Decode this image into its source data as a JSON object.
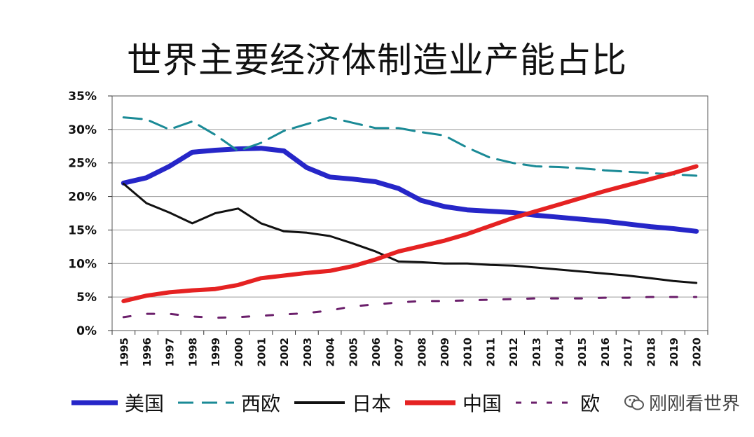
{
  "chart_data": {
    "type": "line",
    "title": "世界主要经济体制造业产能占比",
    "x": [
      1995,
      1996,
      1997,
      1998,
      1999,
      2000,
      2001,
      2002,
      2003,
      2004,
      2005,
      2006,
      2007,
      2008,
      2009,
      2010,
      2011,
      2012,
      2013,
      2014,
      2015,
      2016,
      2017,
      2018,
      2019,
      2020
    ],
    "yticks": [
      "0%",
      "5%",
      "10%",
      "15%",
      "20%",
      "25%",
      "30%",
      "35%"
    ],
    "ylim": [
      0,
      35
    ],
    "grid": true,
    "legend_position": "bottom",
    "series": [
      {
        "name": "美国",
        "color": "#2626c8",
        "dash": "solid",
        "width": 7,
        "values": [
          22.0,
          22.8,
          24.5,
          26.6,
          26.9,
          27.1,
          27.2,
          26.8,
          24.3,
          22.9,
          22.6,
          22.2,
          21.2,
          19.4,
          18.5,
          18.0,
          17.8,
          17.6,
          17.2,
          16.9,
          16.6,
          16.3,
          15.9,
          15.5,
          15.2,
          14.8
        ]
      },
      {
        "name": "西欧",
        "color": "#1a8a96",
        "dash": "dashed",
        "width": 3,
        "values": [
          31.8,
          31.5,
          30.0,
          31.2,
          29.2,
          26.8,
          28.0,
          29.8,
          30.8,
          31.8,
          31.0,
          30.2,
          30.2,
          29.6,
          29.1,
          27.3,
          25.8,
          25.0,
          24.5,
          24.4,
          24.2,
          23.9,
          23.7,
          23.5,
          23.3,
          23.1
        ]
      },
      {
        "name": "日本",
        "color": "#111111",
        "dash": "solid",
        "width": 3,
        "values": [
          21.9,
          19.0,
          17.6,
          16.0,
          17.5,
          18.2,
          16.0,
          14.8,
          14.6,
          14.1,
          13.0,
          11.8,
          10.3,
          10.2,
          10.0,
          10.0,
          9.8,
          9.7,
          9.4,
          9.1,
          8.8,
          8.5,
          8.2,
          7.8,
          7.4,
          7.1
        ]
      },
      {
        "name": "中国",
        "color": "#e52222",
        "dash": "solid",
        "width": 6,
        "values": [
          4.4,
          5.2,
          5.7,
          6.0,
          6.2,
          6.8,
          7.8,
          8.2,
          8.6,
          8.9,
          9.6,
          10.6,
          11.8,
          12.6,
          13.4,
          14.4,
          15.6,
          16.8,
          17.8,
          18.8,
          19.8,
          20.8,
          21.7,
          22.6,
          23.5,
          24.5
        ]
      },
      {
        "name": "",
        "color": "#6b1f6b",
        "dash": "dashed",
        "width": 3,
        "values": [
          2.0,
          2.5,
          2.5,
          2.1,
          1.9,
          2.0,
          2.2,
          2.4,
          2.6,
          3.0,
          3.6,
          3.9,
          4.2,
          4.4,
          4.4,
          4.5,
          4.6,
          4.7,
          4.8,
          4.8,
          4.8,
          4.9,
          4.9,
          5.0,
          5.0,
          5.0
        ]
      }
    ]
  },
  "legend": {
    "items": [
      {
        "label": "美国"
      },
      {
        "label": "西欧"
      },
      {
        "label": "日本"
      },
      {
        "label": "中国"
      },
      {
        "label": "欧"
      }
    ]
  },
  "watermark": {
    "text": "刚刚看世界"
  }
}
